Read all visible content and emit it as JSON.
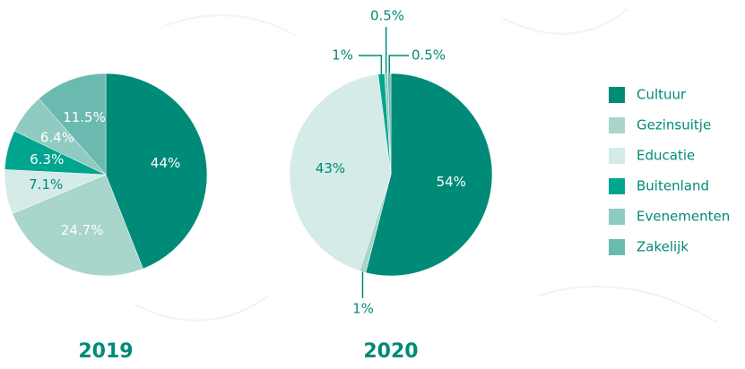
{
  "chart_data": [
    {
      "type": "pie",
      "title": "2019",
      "values": [
        44,
        24.7,
        7.1,
        6.3,
        6.4,
        11.5
      ],
      "value_labels": [
        "44%",
        "24.7%",
        "7.1%",
        "6.3%",
        "6.4%",
        "11.5%"
      ]
    },
    {
      "type": "pie",
      "title": "2020",
      "values": [
        54,
        1,
        43,
        1,
        0.5,
        0.5
      ],
      "value_labels": [
        "54%",
        "1%",
        "43%",
        "1%",
        "0.5%",
        "0.5%"
      ]
    }
  ],
  "legend": {
    "categories": [
      "Cultuur",
      "Gezinsuitje",
      "Educatie",
      "Buitenland",
      "Evenementen",
      "Zakelijk"
    ],
    "colors": [
      "#008a78",
      "#a8d5cc",
      "#d4ebe8",
      "#00a58f",
      "#8fcbc1",
      "#6bbab0"
    ]
  }
}
